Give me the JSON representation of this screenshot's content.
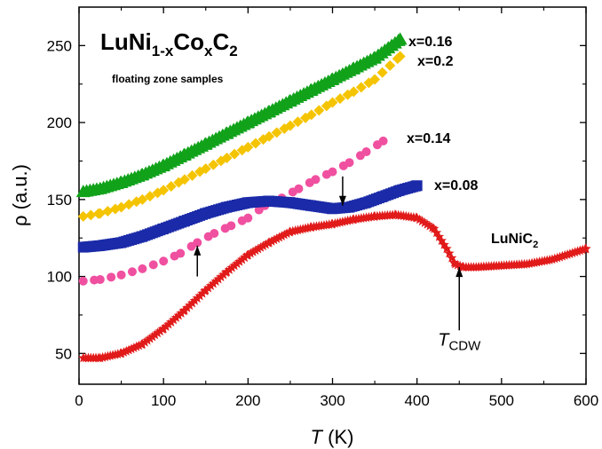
{
  "chart_data": {
    "type": "scatter",
    "title_main": "LuNi",
    "title_sub1": "1-x",
    "title_mid": "Co",
    "title_sub2": "x",
    "title_end": "C",
    "title_sub3": "2",
    "subtitle": "floating zone samples",
    "xlabel_italic": "T",
    "xlabel_unit": " (K)",
    "ylabel": "ρ (a.u.)",
    "xlim": [
      0,
      600
    ],
    "ylim": [
      30,
      275
    ],
    "xticks": [
      0,
      100,
      200,
      300,
      400,
      500,
      600
    ],
    "yticks": [
      50,
      100,
      150,
      200,
      250
    ],
    "grid": false,
    "series": [
      {
        "name": "x=0.16",
        "marker": "triangle",
        "color": "#11a21a",
        "x": [
          5,
          25,
          50,
          75,
          100,
          125,
          150,
          175,
          200,
          225,
          250,
          275,
          300,
          325,
          350,
          380
        ],
        "y": [
          155,
          157,
          161,
          166,
          172,
          179,
          186,
          193,
          200,
          207,
          214,
          221,
          228,
          235,
          242,
          254
        ]
      },
      {
        "name": "x=0.2",
        "marker": "diamond",
        "color": "#f5c400",
        "x": [
          5,
          25,
          50,
          75,
          100,
          125,
          150,
          175,
          200,
          225,
          250,
          275,
          300,
          325,
          350,
          380
        ],
        "y": [
          139,
          141,
          145,
          150,
          156,
          163,
          170,
          177,
          184,
          191,
          198,
          205,
          213,
          220,
          228,
          243
        ]
      },
      {
        "name": "x=0.14",
        "marker": "circle",
        "color": "#f050a0",
        "x": [
          5,
          25,
          50,
          75,
          100,
          120,
          140,
          160,
          180,
          200,
          220,
          240,
          260,
          280,
          300,
          320,
          340,
          360
        ],
        "y": [
          97,
          98,
          101,
          105,
          110,
          115,
          122,
          128,
          133,
          138,
          146,
          151,
          157,
          163,
          168,
          174,
          181,
          188
        ]
      },
      {
        "name": "x=0.08",
        "marker": "square",
        "color": "#1a2aa8",
        "x": [
          5,
          25,
          50,
          75,
          100,
          125,
          150,
          175,
          200,
          225,
          250,
          275,
          300,
          320,
          340,
          360,
          380,
          400
        ],
        "y": [
          119,
          120,
          122,
          126,
          131,
          136,
          141,
          145,
          148,
          149,
          148,
          146,
          144,
          145,
          148,
          152,
          156,
          159
        ]
      },
      {
        "name": "LuNiC",
        "name_sub": "2",
        "marker": "star",
        "color": "#e11a1a",
        "x": [
          5,
          25,
          50,
          75,
          100,
          125,
          150,
          175,
          200,
          225,
          250,
          275,
          300,
          325,
          350,
          375,
          400,
          420,
          435,
          445,
          455,
          470,
          500,
          530,
          560,
          600
        ],
        "y": [
          47,
          47,
          50,
          56,
          66,
          78,
          91,
          103,
          114,
          122,
          129,
          132,
          134,
          137,
          139,
          140,
          138,
          131,
          118,
          108,
          106,
          106,
          107,
          108,
          111,
          118
        ]
      }
    ],
    "annotations": [
      {
        "type": "arrow-up",
        "x": 140,
        "y_tip": 120,
        "y_tail": 100
      },
      {
        "type": "arrow-down",
        "x": 312,
        "y_tip": 146,
        "y_tail": 165
      },
      {
        "type": "arrow-up",
        "x": 450,
        "y_tip": 106,
        "y_tail": 65
      },
      {
        "type": "label",
        "text": "T",
        "sub": "CDW",
        "x": 450,
        "y": 55
      }
    ]
  }
}
